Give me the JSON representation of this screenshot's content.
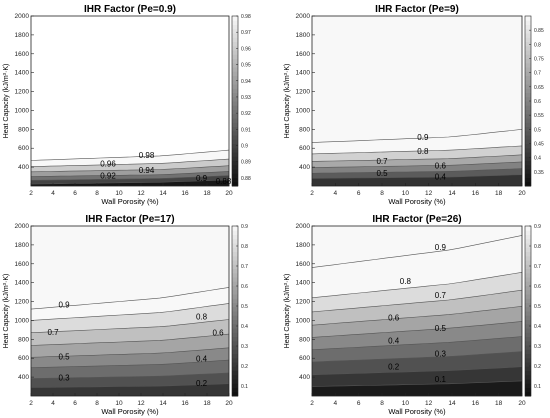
{
  "chart_data": [
    {
      "type": "contour",
      "title": "IHR Factor (Pe=0.9)",
      "xlabel": "Wall Porosity (%)",
      "ylabel": "Heat Capacity (kJ/m³·K)",
      "xlim": [
        2,
        20
      ],
      "ylim": [
        200,
        2000
      ],
      "xticks": [
        "2",
        "4",
        "6",
        "8",
        "10",
        "12",
        "14",
        "16",
        "18",
        "20"
      ],
      "yticks": [
        "400",
        "600",
        "800",
        "1000",
        "1200",
        "1400",
        "1600",
        "1800",
        "2000"
      ],
      "colorbar": {
        "range": [
          0.875,
          0.98
        ],
        "ticks": [
          "0.88",
          "0.89",
          "0.9",
          "0.91",
          "0.92",
          "0.93",
          "0.94",
          "0.95",
          "0.96",
          "0.97",
          "0.98"
        ]
      },
      "contours": [
        {
          "level": "0.88",
          "x": [
            2,
            14,
            20
          ],
          "y": [
            220,
            240,
            265
          ]
        },
        {
          "level": "0.9",
          "x": [
            2,
            14,
            20
          ],
          "y": [
            260,
            280,
            310
          ]
        },
        {
          "level": "0.92",
          "x": [
            2,
            14,
            20
          ],
          "y": [
            300,
            320,
            355
          ]
        },
        {
          "level": "0.94",
          "x": [
            2,
            14,
            20
          ],
          "y": [
            350,
            375,
            415
          ]
        },
        {
          "level": "0.96",
          "x": [
            2,
            14,
            20
          ],
          "y": [
            405,
            440,
            485
          ]
        },
        {
          "level": "0.98",
          "x": [
            2,
            14,
            20
          ],
          "y": [
            470,
            520,
            580
          ]
        }
      ],
      "contour_labels": [
        {
          "text": "0.96",
          "x": 9.0,
          "y": 440
        },
        {
          "text": "0.98",
          "x": 12.5,
          "y": 530
        },
        {
          "text": "0.92",
          "x": 9.0,
          "y": 310
        },
        {
          "text": "0.94",
          "x": 12.5,
          "y": 370
        },
        {
          "text": "0.9",
          "x": 17.5,
          "y": 285
        },
        {
          "text": "0.88",
          "x": 19.5,
          "y": 255
        }
      ]
    },
    {
      "type": "contour",
      "title": "IHR Factor (Pe=9)",
      "xlabel": "Wall Porosity (%)",
      "ylabel": "Heat Capacity (kJ/m³·K)",
      "xlim": [
        2,
        20
      ],
      "ylim": [
        200,
        2000
      ],
      "xticks": [
        "2",
        "4",
        "6",
        "8",
        "10",
        "12",
        "14",
        "16",
        "18",
        "20"
      ],
      "yticks": [
        "400",
        "600",
        "800",
        "1000",
        "1200",
        "1400",
        "1600",
        "1800",
        "2000"
      ],
      "colorbar": {
        "range": [
          0.3,
          0.9
        ],
        "ticks": [
          "0.35",
          "0.4",
          "0.45",
          "0.5",
          "0.55",
          "0.6",
          "0.65",
          "0.7",
          "0.75",
          "0.8",
          "0.85"
        ]
      },
      "contours": [
        {
          "level": "0.4",
          "x": [
            2,
            14,
            20
          ],
          "y": [
            280,
            295,
            320
          ]
        },
        {
          "level": "0.5",
          "x": [
            2,
            14,
            20
          ],
          "y": [
            335,
            355,
            385
          ]
        },
        {
          "level": "0.6",
          "x": [
            2,
            14,
            20
          ],
          "y": [
            395,
            420,
            455
          ]
        },
        {
          "level": "0.7",
          "x": [
            2,
            14,
            20
          ],
          "y": [
            460,
            490,
            530
          ]
        },
        {
          "level": "0.8",
          "x": [
            2,
            14,
            20
          ],
          "y": [
            540,
            580,
            625
          ]
        },
        {
          "level": "0.9",
          "x": [
            2,
            14,
            20
          ],
          "y": [
            660,
            720,
            800
          ]
        }
      ],
      "contour_labels": [
        {
          "text": "0.9",
          "x": 11.5,
          "y": 720
        },
        {
          "text": "0.8",
          "x": 11.5,
          "y": 570
        },
        {
          "text": "0.7",
          "x": 8.0,
          "y": 465
        },
        {
          "text": "0.6",
          "x": 13.0,
          "y": 415
        },
        {
          "text": "0.5",
          "x": 8.0,
          "y": 340
        },
        {
          "text": "0.4",
          "x": 13.0,
          "y": 300
        }
      ]
    },
    {
      "type": "contour",
      "title": "IHR Factor (Pe=17)",
      "xlabel": "Wall Porosity (%)",
      "ylabel": "Heat Capacity (kJ/m³·K)",
      "xlim": [
        2,
        20
      ],
      "ylim": [
        200,
        2000
      ],
      "xticks": [
        "2",
        "4",
        "6",
        "8",
        "10",
        "12",
        "14",
        "16",
        "18",
        "20"
      ],
      "yticks": [
        "400",
        "600",
        "800",
        "1000",
        "1200",
        "1400",
        "1600",
        "1800",
        "2000"
      ],
      "colorbar": {
        "range": [
          0.05,
          0.9
        ],
        "ticks": [
          "0.1",
          "0.2",
          "0.3",
          "0.4",
          "0.5",
          "0.6",
          "0.7",
          "0.8",
          "0.9"
        ]
      },
      "contours": [
        {
          "level": "0.2",
          "x": [
            2,
            14,
            20
          ],
          "y": [
            290,
            305,
            330
          ]
        },
        {
          "level": "0.3",
          "x": [
            2,
            14,
            20
          ],
          "y": [
            385,
            410,
            445
          ]
        },
        {
          "level": "0.4",
          "x": [
            2,
            14,
            20
          ],
          "y": [
            500,
            535,
            580
          ]
        },
        {
          "level": "0.5",
          "x": [
            2,
            14,
            20
          ],
          "y": [
            610,
            655,
            710
          ]
        },
        {
          "level": "0.6",
          "x": [
            2,
            14,
            20
          ],
          "y": [
            735,
            790,
            855
          ]
        },
        {
          "level": "0.7",
          "x": [
            2,
            14,
            20
          ],
          "y": [
            870,
            935,
            1010
          ]
        },
        {
          "level": "0.8",
          "x": [
            2,
            14,
            20
          ],
          "y": [
            1000,
            1085,
            1180
          ]
        },
        {
          "level": "0.9",
          "x": [
            2,
            14,
            20
          ],
          "y": [
            1120,
            1240,
            1350
          ]
        }
      ],
      "contour_labels": [
        {
          "text": "0.9",
          "x": 5.0,
          "y": 1170
        },
        {
          "text": "0.8",
          "x": 17.5,
          "y": 1040
        },
        {
          "text": "0.7",
          "x": 4.0,
          "y": 880
        },
        {
          "text": "0.6",
          "x": 19.0,
          "y": 870
        },
        {
          "text": "0.5",
          "x": 5.0,
          "y": 620
        },
        {
          "text": "0.4",
          "x": 17.5,
          "y": 595
        },
        {
          "text": "0.3",
          "x": 5.0,
          "y": 395
        },
        {
          "text": "0.2",
          "x": 17.5,
          "y": 340
        }
      ]
    },
    {
      "type": "contour",
      "title": "IHR Factor (Pe=26)",
      "xlabel": "Wall Porosity (%)",
      "ylabel": "Heat Capacity (kJ/m³·K)",
      "xlim": [
        2,
        20
      ],
      "ylim": [
        200,
        2000
      ],
      "xticks": [
        "2",
        "4",
        "6",
        "8",
        "10",
        "12",
        "14",
        "16",
        "18",
        "20"
      ],
      "yticks": [
        "400",
        "600",
        "800",
        "1000",
        "1200",
        "1400",
        "1600",
        "1800",
        "2000"
      ],
      "colorbar": {
        "range": [
          0.05,
          0.9
        ],
        "ticks": [
          "0.1",
          "0.2",
          "0.3",
          "0.4",
          "0.5",
          "0.6",
          "0.7",
          "0.8",
          "0.9"
        ]
      },
      "contours": [
        {
          "level": "0.1",
          "x": [
            2,
            14,
            20
          ],
          "y": [
            300,
            330,
            360
          ]
        },
        {
          "level": "0.2",
          "x": [
            2,
            14,
            20
          ],
          "y": [
            425,
            470,
            510
          ]
        },
        {
          "level": "0.3",
          "x": [
            2,
            14,
            20
          ],
          "y": [
            560,
            620,
            670
          ]
        },
        {
          "level": "0.4",
          "x": [
            2,
            14,
            20
          ],
          "y": [
            690,
            770,
            830
          ]
        },
        {
          "level": "0.5",
          "x": [
            2,
            14,
            20
          ],
          "y": [
            820,
            920,
            990
          ]
        },
        {
          "level": "0.6",
          "x": [
            2,
            14,
            20
          ],
          "y": [
            950,
            1065,
            1150
          ]
        },
        {
          "level": "0.7",
          "x": [
            2,
            14,
            20
          ],
          "y": [
            1090,
            1220,
            1320
          ]
        },
        {
          "level": "0.8",
          "x": [
            2,
            14,
            20
          ],
          "y": [
            1240,
            1390,
            1510
          ]
        },
        {
          "level": "0.9",
          "x": [
            2,
            14,
            20
          ],
          "y": [
            1560,
            1750,
            1900
          ]
        }
      ],
      "contour_labels": [
        {
          "text": "0.9",
          "x": 13.0,
          "y": 1780
        },
        {
          "text": "0.8",
          "x": 10.0,
          "y": 1420
        },
        {
          "text": "0.7",
          "x": 13.0,
          "y": 1270
        },
        {
          "text": "0.6",
          "x": 9.0,
          "y": 1030
        },
        {
          "text": "0.5",
          "x": 13.0,
          "y": 920
        },
        {
          "text": "0.4",
          "x": 9.0,
          "y": 790
        },
        {
          "text": "0.3",
          "x": 13.0,
          "y": 650
        },
        {
          "text": "0.2",
          "x": 9.0,
          "y": 510
        },
        {
          "text": "0.1",
          "x": 13.0,
          "y": 380
        }
      ]
    }
  ]
}
